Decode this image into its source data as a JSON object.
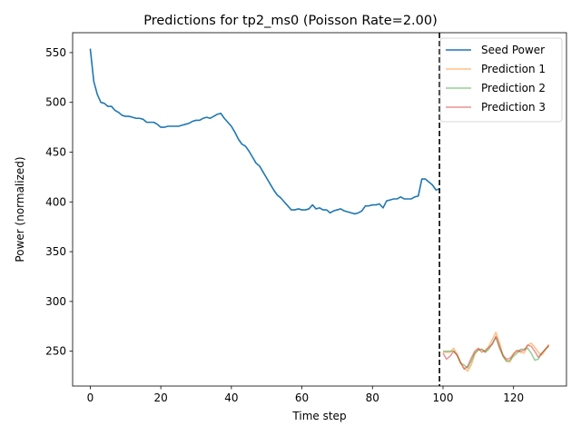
{
  "chart_data": {
    "type": "line",
    "title": "Predictions for tp2_ms0 (Poisson Rate=2.00)",
    "xlabel": "Time step",
    "ylabel": "Power (normalized)",
    "xlim": [
      -5,
      135
    ],
    "ylim": [
      215,
      570
    ],
    "xticks": [
      0,
      20,
      40,
      60,
      80,
      100,
      120
    ],
    "yticks": [
      250,
      300,
      350,
      400,
      450,
      500,
      550
    ],
    "grid": false,
    "legend_position": "top-right",
    "vline": {
      "x": 99,
      "style": "dashed",
      "color": "#000000"
    },
    "series": [
      {
        "name": "Seed Power",
        "color": "#1f77b4",
        "x_start": 0,
        "values": [
          554,
          521,
          508,
          500,
          499,
          496,
          496,
          492,
          490,
          487,
          486,
          486,
          485,
          484,
          484,
          483,
          480,
          480,
          480,
          478,
          475,
          475,
          476,
          476,
          476,
          476,
          477,
          478,
          479,
          481,
          482,
          482,
          484,
          485,
          484,
          486,
          488,
          489,
          484,
          480,
          476,
          470,
          463,
          458,
          456,
          451,
          445,
          439,
          436,
          430,
          424,
          418,
          412,
          407,
          404,
          400,
          396,
          392,
          392,
          393,
          392,
          392,
          393,
          397,
          393,
          394,
          392,
          392,
          389,
          391,
          392,
          393,
          391,
          390,
          389,
          388,
          389,
          391,
          396,
          396,
          397,
          397,
          398,
          394,
          401,
          402,
          403,
          403,
          405,
          403,
          403,
          403,
          405,
          406,
          423,
          423,
          420,
          417,
          412,
          413
        ]
      },
      {
        "name": "Prediction 1",
        "color": "#ff7f0e",
        "x_start": 100,
        "values": [
          249,
          249,
          249,
          253,
          247,
          239,
          233,
          230,
          236,
          247,
          252,
          252,
          249,
          255,
          262,
          269,
          259,
          245,
          240,
          239,
          248,
          250,
          249,
          248,
          256,
          258,
          254,
          249,
          246,
          251,
          257
        ]
      },
      {
        "name": "Prediction 2",
        "color": "#2ca02c",
        "x_start": 100,
        "values": [
          250,
          250,
          250,
          250,
          246,
          238,
          236,
          233,
          240,
          248,
          251,
          252,
          249,
          252,
          258,
          264,
          253,
          245,
          240,
          241,
          245,
          248,
          252,
          252,
          253,
          248,
          241,
          242,
          248,
          252,
          255
        ]
      },
      {
        "name": "Prediction 3",
        "color": "#d62728",
        "x_start": 100,
        "values": [
          248,
          242,
          245,
          250,
          246,
          238,
          232,
          235,
          243,
          250,
          253,
          249,
          251,
          254,
          257,
          265,
          255,
          246,
          242,
          243,
          247,
          251,
          250,
          251,
          256,
          255,
          250,
          244,
          248,
          252,
          256
        ]
      }
    ]
  }
}
